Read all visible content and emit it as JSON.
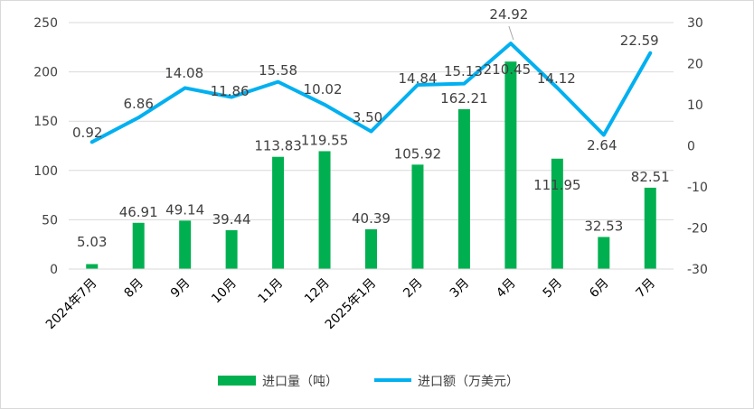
{
  "chart_data": {
    "type": "bar+line",
    "categories": [
      "2024年7月",
      "8月",
      "9月",
      "10月",
      "11月",
      "12月",
      "2025年1月",
      "2月",
      "3月",
      "4月",
      "5月",
      "6月",
      "7月"
    ],
    "series": [
      {
        "name": "进口量（吨）",
        "type": "bar",
        "axis": "left",
        "color": "#00b050",
        "values": [
          5.03,
          46.91,
          49.14,
          39.44,
          113.83,
          119.55,
          40.39,
          105.92,
          162.21,
          210.45,
          111.95,
          32.53,
          82.51
        ]
      },
      {
        "name": "进口额（万美元）",
        "type": "line",
        "axis": "right",
        "color": "#00b0f0",
        "values": [
          0.92,
          6.86,
          14.08,
          11.86,
          15.58,
          10.02,
          3.5,
          14.84,
          15.13,
          24.92,
          14.12,
          2.64,
          22.59
        ]
      }
    ],
    "bar_labels": [
      "5.03",
      "46.91",
      "49.14",
      "39.44",
      "113.83",
      "119.55",
      "40.39",
      "105.92",
      "162.21",
      "210.45",
      "111.95",
      "32.53",
      "82.51"
    ],
    "line_labels": [
      "0.92",
      "6.86",
      "14.08",
      "11.86",
      "15.58",
      "10.02",
      "3.50",
      "14.84",
      "15.13",
      "24.92",
      "14.12",
      "2.64",
      "22.59"
    ],
    "y_left": {
      "min": 0,
      "max": 250,
      "ticks": [
        "0",
        "50",
        "100",
        "150",
        "200",
        "250"
      ]
    },
    "y_right": {
      "min": -30,
      "max": 30,
      "ticks": [
        "-30",
        "-20",
        "-10",
        "0",
        "10",
        "20",
        "30"
      ]
    },
    "legend_position": "bottom",
    "gridlines": true
  }
}
